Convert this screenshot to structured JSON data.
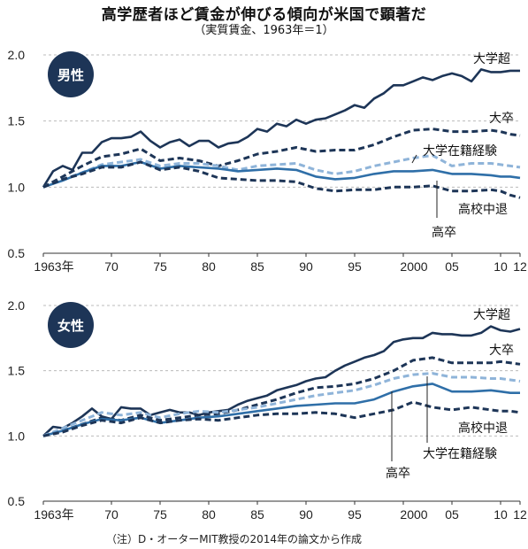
{
  "title": "高学歴者ほど賃金が伸びる傾向が米国で顕著だ",
  "subtitle": "（実質賃金、1963年＝1）",
  "note": "（注）D・オーターMIT教授の2014年の論文から作成",
  "colors": {
    "dark": "#1d3557",
    "mid": "#2f6fa8",
    "light": "#8fb4d9",
    "badge": "#1d3557",
    "grid": "#bbbbbb"
  },
  "chart_data": [
    {
      "type": "line",
      "panel_label": "男性",
      "ylim": [
        0.5,
        2.0
      ],
      "y_ticks": [
        "0.5",
        "1.0",
        "1.5",
        "2.0"
      ],
      "xlim": [
        1963,
        2012
      ],
      "x_ticks": [
        {
          "x": 1963,
          "label": "1963年"
        },
        {
          "x": 1970,
          "label": "70"
        },
        {
          "x": 1975,
          "label": "75"
        },
        {
          "x": 1980,
          "label": "80"
        },
        {
          "x": 1985,
          "label": "85"
        },
        {
          "x": 1990,
          "label": "90"
        },
        {
          "x": 1995,
          "label": "95"
        },
        {
          "x": 2000,
          "label": "2000"
        },
        {
          "x": 2005,
          "label": "05"
        },
        {
          "x": 2010,
          "label": "10"
        },
        {
          "x": 2012,
          "label": "12"
        }
      ],
      "grid": true,
      "series": [
        {
          "name": "大学超",
          "style": "solid",
          "color": "dark",
          "x": [
            1963,
            1964,
            1965,
            1966,
            1967,
            1968,
            1969,
            1970,
            1971,
            1972,
            1973,
            1974,
            1975,
            1976,
            1977,
            1978,
            1979,
            1980,
            1981,
            1982,
            1983,
            1984,
            1985,
            1986,
            1987,
            1988,
            1989,
            1990,
            1991,
            1992,
            1993,
            1994,
            1995,
            1996,
            1997,
            1998,
            1999,
            2000,
            2001,
            2002,
            2003,
            2004,
            2005,
            2006,
            2007,
            2008,
            2009,
            2010,
            2011,
            2012
          ],
          "y": [
            1.0,
            1.12,
            1.16,
            1.13,
            1.26,
            1.26,
            1.34,
            1.37,
            1.37,
            1.38,
            1.42,
            1.35,
            1.3,
            1.34,
            1.36,
            1.31,
            1.35,
            1.35,
            1.3,
            1.33,
            1.34,
            1.38,
            1.44,
            1.42,
            1.48,
            1.46,
            1.51,
            1.48,
            1.51,
            1.52,
            1.55,
            1.58,
            1.62,
            1.6,
            1.67,
            1.71,
            1.77,
            1.77,
            1.8,
            1.83,
            1.81,
            1.84,
            1.86,
            1.84,
            1.8,
            1.89,
            1.87,
            1.87,
            1.88,
            1.88
          ]
        },
        {
          "name": "大卒",
          "style": "dashed",
          "color": "dark",
          "x": [
            1963,
            1965,
            1967,
            1969,
            1971,
            1973,
            1975,
            1977,
            1979,
            1981,
            1983,
            1985,
            1987,
            1989,
            1991,
            1993,
            1995,
            1997,
            1999,
            2001,
            2003,
            2005,
            2007,
            2009,
            2010,
            2011,
            2012
          ],
          "y": [
            1.0,
            1.08,
            1.16,
            1.23,
            1.25,
            1.29,
            1.2,
            1.22,
            1.2,
            1.16,
            1.2,
            1.25,
            1.27,
            1.3,
            1.27,
            1.28,
            1.28,
            1.32,
            1.38,
            1.43,
            1.44,
            1.42,
            1.42,
            1.43,
            1.42,
            1.4,
            1.39
          ]
        },
        {
          "name": "大学在籍経験",
          "style": "dashed",
          "color": "light",
          "x": [
            1963,
            1965,
            1967,
            1969,
            1971,
            1973,
            1975,
            1977,
            1979,
            1981,
            1983,
            1985,
            1987,
            1989,
            1991,
            1993,
            1995,
            1997,
            1999,
            2001,
            2003,
            2005,
            2007,
            2009,
            2010,
            2011,
            2012
          ],
          "y": [
            1.0,
            1.06,
            1.11,
            1.17,
            1.19,
            1.21,
            1.16,
            1.18,
            1.18,
            1.16,
            1.13,
            1.16,
            1.17,
            1.18,
            1.13,
            1.1,
            1.12,
            1.16,
            1.19,
            1.22,
            1.24,
            1.16,
            1.18,
            1.18,
            1.17,
            1.16,
            1.15
          ]
        },
        {
          "name": "高卒",
          "style": "solid",
          "color": "mid",
          "x": [
            1963,
            1965,
            1967,
            1969,
            1971,
            1973,
            1975,
            1977,
            1979,
            1981,
            1983,
            1985,
            1987,
            1989,
            1991,
            1993,
            1995,
            1997,
            1999,
            2001,
            2003,
            2005,
            2007,
            2009,
            2010,
            2011,
            2012
          ],
          "y": [
            1.0,
            1.05,
            1.11,
            1.16,
            1.16,
            1.19,
            1.14,
            1.16,
            1.15,
            1.14,
            1.12,
            1.13,
            1.14,
            1.13,
            1.08,
            1.06,
            1.07,
            1.1,
            1.12,
            1.12,
            1.13,
            1.1,
            1.1,
            1.09,
            1.08,
            1.08,
            1.07
          ]
        },
        {
          "name": "高校中退",
          "style": "dashed",
          "color": "dark",
          "x": [
            1963,
            1965,
            1967,
            1969,
            1971,
            1973,
            1975,
            1977,
            1979,
            1981,
            1983,
            1985,
            1987,
            1989,
            1991,
            1993,
            1995,
            1997,
            1999,
            2001,
            2003,
            2005,
            2007,
            2009,
            2010,
            2011,
            2012
          ],
          "y": [
            1.0,
            1.06,
            1.1,
            1.15,
            1.15,
            1.19,
            1.13,
            1.15,
            1.12,
            1.07,
            1.06,
            1.05,
            1.05,
            1.04,
            0.99,
            0.97,
            0.98,
            0.98,
            1.0,
            1.0,
            1.01,
            0.97,
            0.97,
            0.98,
            0.97,
            0.94,
            0.92
          ]
        }
      ],
      "label_positions": [
        "top-right",
        "right",
        "right",
        "below",
        "right"
      ]
    },
    {
      "type": "line",
      "panel_label": "女性",
      "ylim": [
        0.5,
        2.0
      ],
      "y_ticks": [
        "0.5",
        "1.0",
        "1.5",
        "2.0"
      ],
      "xlim": [
        1963,
        2012
      ],
      "x_ticks": [
        {
          "x": 1963,
          "label": "1963年"
        },
        {
          "x": 1970,
          "label": "70"
        },
        {
          "x": 1975,
          "label": "75"
        },
        {
          "x": 1980,
          "label": "80"
        },
        {
          "x": 1985,
          "label": "85"
        },
        {
          "x": 1990,
          "label": "90"
        },
        {
          "x": 1995,
          "label": "95"
        },
        {
          "x": 2000,
          "label": "2000"
        },
        {
          "x": 2005,
          "label": "05"
        },
        {
          "x": 2010,
          "label": "10"
        },
        {
          "x": 2012,
          "label": "12"
        }
      ],
      "grid": true,
      "series": [
        {
          "name": "大学超",
          "style": "solid",
          "color": "dark",
          "x": [
            1963,
            1964,
            1965,
            1966,
            1967,
            1968,
            1969,
            1970,
            1971,
            1972,
            1973,
            1974,
            1975,
            1976,
            1977,
            1978,
            1979,
            1980,
            1981,
            1982,
            1983,
            1984,
            1985,
            1986,
            1987,
            1988,
            1989,
            1990,
            1991,
            1992,
            1993,
            1994,
            1995,
            1996,
            1997,
            1998,
            1999,
            2000,
            2001,
            2002,
            2003,
            2004,
            2005,
            2006,
            2007,
            2008,
            2009,
            2010,
            2011,
            2012
          ],
          "y": [
            1.0,
            1.07,
            1.06,
            1.1,
            1.15,
            1.21,
            1.15,
            1.13,
            1.22,
            1.21,
            1.21,
            1.16,
            1.18,
            1.2,
            1.18,
            1.18,
            1.16,
            1.18,
            1.19,
            1.2,
            1.24,
            1.27,
            1.29,
            1.31,
            1.35,
            1.37,
            1.39,
            1.42,
            1.44,
            1.45,
            1.5,
            1.54,
            1.57,
            1.6,
            1.62,
            1.65,
            1.72,
            1.74,
            1.75,
            1.75,
            1.79,
            1.78,
            1.78,
            1.77,
            1.77,
            1.79,
            1.84,
            1.81,
            1.8,
            1.82
          ]
        },
        {
          "name": "大卒",
          "style": "dashed",
          "color": "dark",
          "x": [
            1963,
            1965,
            1967,
            1969,
            1971,
            1973,
            1975,
            1977,
            1979,
            1981,
            1983,
            1985,
            1987,
            1989,
            1991,
            1993,
            1995,
            1997,
            1999,
            2001,
            2003,
            2005,
            2007,
            2009,
            2010,
            2011,
            2012
          ],
          "y": [
            1.0,
            1.04,
            1.09,
            1.14,
            1.12,
            1.16,
            1.12,
            1.14,
            1.16,
            1.17,
            1.2,
            1.24,
            1.28,
            1.33,
            1.37,
            1.38,
            1.4,
            1.44,
            1.5,
            1.58,
            1.6,
            1.56,
            1.56,
            1.56,
            1.57,
            1.56,
            1.55
          ]
        },
        {
          "name": "大学在籍経験",
          "style": "dashed",
          "color": "light",
          "x": [
            1963,
            1965,
            1967,
            1969,
            1971,
            1973,
            1975,
            1977,
            1979,
            1981,
            1983,
            1985,
            1987,
            1989,
            1991,
            1993,
            1995,
            1997,
            1999,
            2001,
            2003,
            2005,
            2007,
            2009,
            2010,
            2011,
            2012
          ],
          "y": [
            1.0,
            1.06,
            1.12,
            1.18,
            1.16,
            1.18,
            1.14,
            1.17,
            1.19,
            1.18,
            1.2,
            1.22,
            1.25,
            1.28,
            1.31,
            1.33,
            1.35,
            1.39,
            1.44,
            1.47,
            1.48,
            1.45,
            1.45,
            1.44,
            1.44,
            1.43,
            1.42
          ]
        },
        {
          "name": "高卒",
          "style": "solid",
          "color": "mid",
          "x": [
            1963,
            1965,
            1967,
            1969,
            1971,
            1973,
            1975,
            1977,
            1979,
            1981,
            1983,
            1985,
            1987,
            1989,
            1991,
            1993,
            1995,
            1997,
            1999,
            2001,
            2003,
            2005,
            2007,
            2009,
            2010,
            2011,
            2012
          ],
          "y": [
            1.0,
            1.04,
            1.09,
            1.13,
            1.12,
            1.14,
            1.1,
            1.12,
            1.14,
            1.15,
            1.17,
            1.19,
            1.21,
            1.23,
            1.24,
            1.25,
            1.25,
            1.28,
            1.34,
            1.38,
            1.4,
            1.34,
            1.34,
            1.35,
            1.34,
            1.33,
            1.33
          ]
        },
        {
          "name": "高校中退",
          "style": "dashed",
          "color": "dark",
          "x": [
            1963,
            1965,
            1967,
            1969,
            1971,
            1973,
            1975,
            1977,
            1979,
            1981,
            1983,
            1985,
            1987,
            1989,
            1991,
            1993,
            1995,
            1997,
            1999,
            2001,
            2003,
            2005,
            2007,
            2009,
            2010,
            2011,
            2012
          ],
          "y": [
            1.0,
            1.03,
            1.08,
            1.12,
            1.1,
            1.14,
            1.1,
            1.12,
            1.13,
            1.12,
            1.14,
            1.16,
            1.17,
            1.17,
            1.18,
            1.17,
            1.14,
            1.17,
            1.2,
            1.26,
            1.22,
            1.2,
            1.22,
            1.2,
            1.19,
            1.19,
            1.18
          ]
        }
      ],
      "label_positions": [
        "top-right",
        "right",
        "below",
        "below",
        "right"
      ]
    }
  ]
}
